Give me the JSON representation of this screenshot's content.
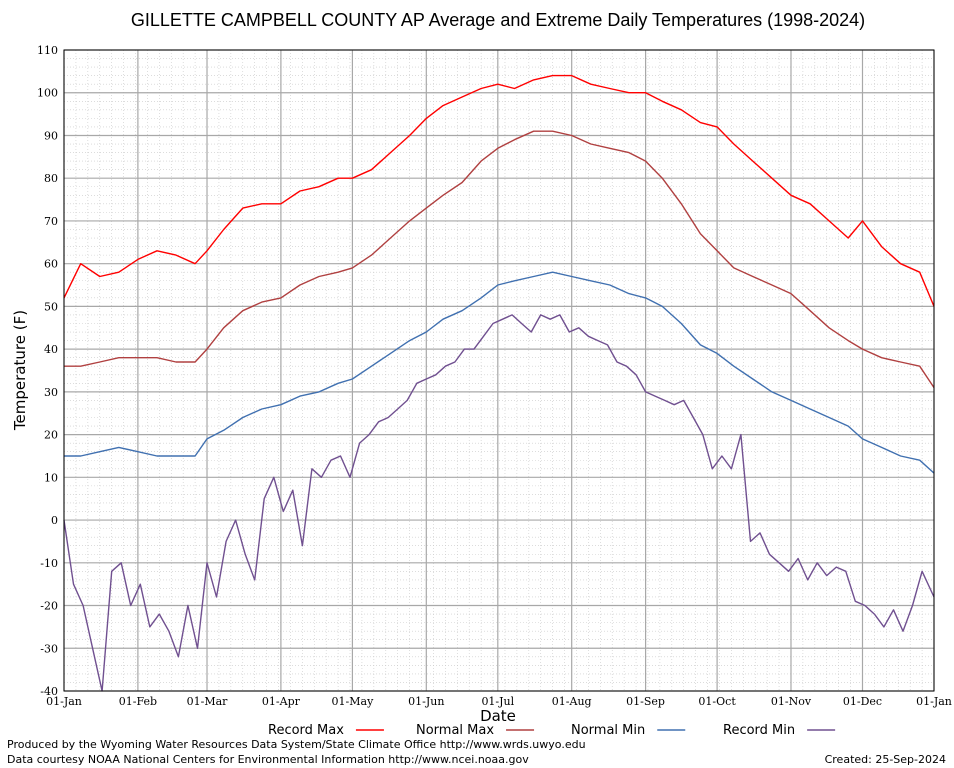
{
  "chart_data": {
    "type": "line",
    "title": "GILLETTE CAMPBELL COUNTY AP Average and Extreme Daily Temperatures (1998-2024)",
    "xlabel": "Date",
    "ylabel": "Temperature (F)",
    "ylim": [
      -40,
      110
    ],
    "yticks": [
      -40,
      -30,
      -20,
      -10,
      0,
      10,
      20,
      30,
      40,
      50,
      60,
      70,
      80,
      90,
      100,
      110
    ],
    "xlim_day_of_year": [
      1,
      366
    ],
    "xticks": [
      {
        "label": "01-Jan",
        "day": 1
      },
      {
        "label": "01-Feb",
        "day": 32
      },
      {
        "label": "01-Mar",
        "day": 61
      },
      {
        "label": "01-Apr",
        "day": 92
      },
      {
        "label": "01-May",
        "day": 122
      },
      {
        "label": "01-Jun",
        "day": 153
      },
      {
        "label": "01-Jul",
        "day": 183
      },
      {
        "label": "01-Aug",
        "day": 214
      },
      {
        "label": "01-Sep",
        "day": 245
      },
      {
        "label": "01-Oct",
        "day": 275
      },
      {
        "label": "01-Nov",
        "day": 306
      },
      {
        "label": "01-Dec",
        "day": 336
      },
      {
        "label": "01-Jan",
        "day": 366
      }
    ],
    "grid": true,
    "legend_placement": "bottom",
    "series": [
      {
        "name": "Record Max",
        "color": "#ff0000",
        "x": [
          1,
          8,
          16,
          24,
          32,
          40,
          48,
          56,
          61,
          68,
          76,
          84,
          92,
          100,
          108,
          116,
          122,
          130,
          138,
          146,
          153,
          160,
          168,
          176,
          183,
          190,
          198,
          206,
          214,
          222,
          230,
          238,
          245,
          252,
          260,
          268,
          275,
          282,
          290,
          298,
          306,
          314,
          322,
          330,
          336,
          344,
          352,
          360,
          366
        ],
        "y": [
          52,
          60,
          57,
          58,
          61,
          63,
          62,
          60,
          63,
          68,
          73,
          74,
          74,
          77,
          78,
          80,
          80,
          82,
          86,
          90,
          94,
          97,
          99,
          101,
          102,
          101,
          103,
          104,
          104,
          102,
          101,
          100,
          100,
          98,
          96,
          93,
          92,
          88,
          84,
          80,
          76,
          74,
          70,
          66,
          70,
          64,
          60,
          58,
          50
        ]
      },
      {
        "name": "Normal Max",
        "color": "#b04040",
        "x": [
          1,
          8,
          16,
          24,
          32,
          40,
          48,
          56,
          61,
          68,
          76,
          84,
          92,
          100,
          108,
          116,
          122,
          130,
          138,
          146,
          153,
          160,
          168,
          176,
          183,
          190,
          198,
          206,
          214,
          222,
          230,
          238,
          245,
          252,
          260,
          268,
          275,
          282,
          290,
          298,
          306,
          314,
          322,
          330,
          336,
          344,
          352,
          360,
          366
        ],
        "y": [
          36,
          36,
          37,
          38,
          38,
          38,
          37,
          37,
          40,
          45,
          49,
          51,
          52,
          55,
          57,
          58,
          59,
          62,
          66,
          70,
          73,
          76,
          79,
          84,
          87,
          89,
          91,
          91,
          90,
          88,
          87,
          86,
          84,
          80,
          74,
          67,
          63,
          59,
          57,
          55,
          53,
          49,
          45,
          42,
          40,
          38,
          37,
          36,
          31
        ]
      },
      {
        "name": "Normal Min",
        "color": "#4070b0",
        "x": [
          1,
          8,
          16,
          24,
          32,
          40,
          48,
          56,
          61,
          68,
          76,
          84,
          92,
          100,
          108,
          116,
          122,
          130,
          138,
          146,
          153,
          160,
          168,
          176,
          183,
          190,
          198,
          206,
          214,
          222,
          230,
          238,
          245,
          252,
          260,
          268,
          275,
          282,
          290,
          298,
          306,
          314,
          322,
          330,
          336,
          344,
          352,
          360,
          366
        ],
        "y": [
          15,
          15,
          16,
          17,
          16,
          15,
          15,
          15,
          19,
          21,
          24,
          26,
          27,
          29,
          30,
          32,
          33,
          36,
          39,
          42,
          44,
          47,
          49,
          52,
          55,
          56,
          57,
          58,
          57,
          56,
          55,
          53,
          52,
          50,
          46,
          41,
          39,
          36,
          33,
          30,
          28,
          26,
          24,
          22,
          19,
          17,
          15,
          14,
          11
        ]
      },
      {
        "name": "Record Min",
        "color": "#705090",
        "x": [
          1,
          5,
          9,
          13,
          17,
          21,
          25,
          29,
          33,
          37,
          41,
          45,
          49,
          53,
          57,
          61,
          65,
          69,
          73,
          77,
          81,
          85,
          89,
          93,
          97,
          101,
          105,
          109,
          113,
          117,
          121,
          125,
          129,
          133,
          137,
          141,
          145,
          149,
          153,
          157,
          161,
          165,
          169,
          173,
          177,
          181,
          185,
          189,
          193,
          197,
          201,
          205,
          209,
          213,
          217,
          221,
          225,
          229,
          233,
          237,
          241,
          245,
          249,
          253,
          257,
          261,
          265,
          269,
          273,
          277,
          281,
          285,
          289,
          293,
          297,
          301,
          305,
          309,
          313,
          317,
          321,
          325,
          329,
          333,
          337,
          341,
          345,
          349,
          353,
          357,
          361,
          366
        ],
        "y": [
          0,
          -15,
          -20,
          -30,
          -40,
          -12,
          -10,
          -20,
          -15,
          -25,
          -22,
          -26,
          -32,
          -20,
          -30,
          -10,
          -18,
          -5,
          0,
          -8,
          -14,
          5,
          10,
          2,
          7,
          -6,
          12,
          10,
          14,
          15,
          10,
          18,
          20,
          23,
          24,
          26,
          28,
          32,
          33,
          34,
          36,
          37,
          40,
          40,
          43,
          46,
          47,
          48,
          46,
          44,
          48,
          47,
          48,
          44,
          45,
          43,
          42,
          41,
          37,
          36,
          34,
          30,
          29,
          28,
          27,
          28,
          24,
          20,
          12,
          15,
          12,
          20,
          -5,
          -3,
          -8,
          -10,
          -12,
          -9,
          -14,
          -10,
          -13,
          -11,
          -12,
          -19,
          -20,
          -22,
          -25,
          -21,
          -26,
          -20,
          -12,
          -18
        ]
      }
    ]
  },
  "footer": {
    "line1": "Produced by the Wyoming Water Resources Data System/State Climate Office http://www.wrds.uwyo.edu",
    "line2": "Data courtesy NOAA National Centers for Environmental Information http://www.ncei.noaa.gov",
    "created": "Created:  25-Sep-2024"
  }
}
